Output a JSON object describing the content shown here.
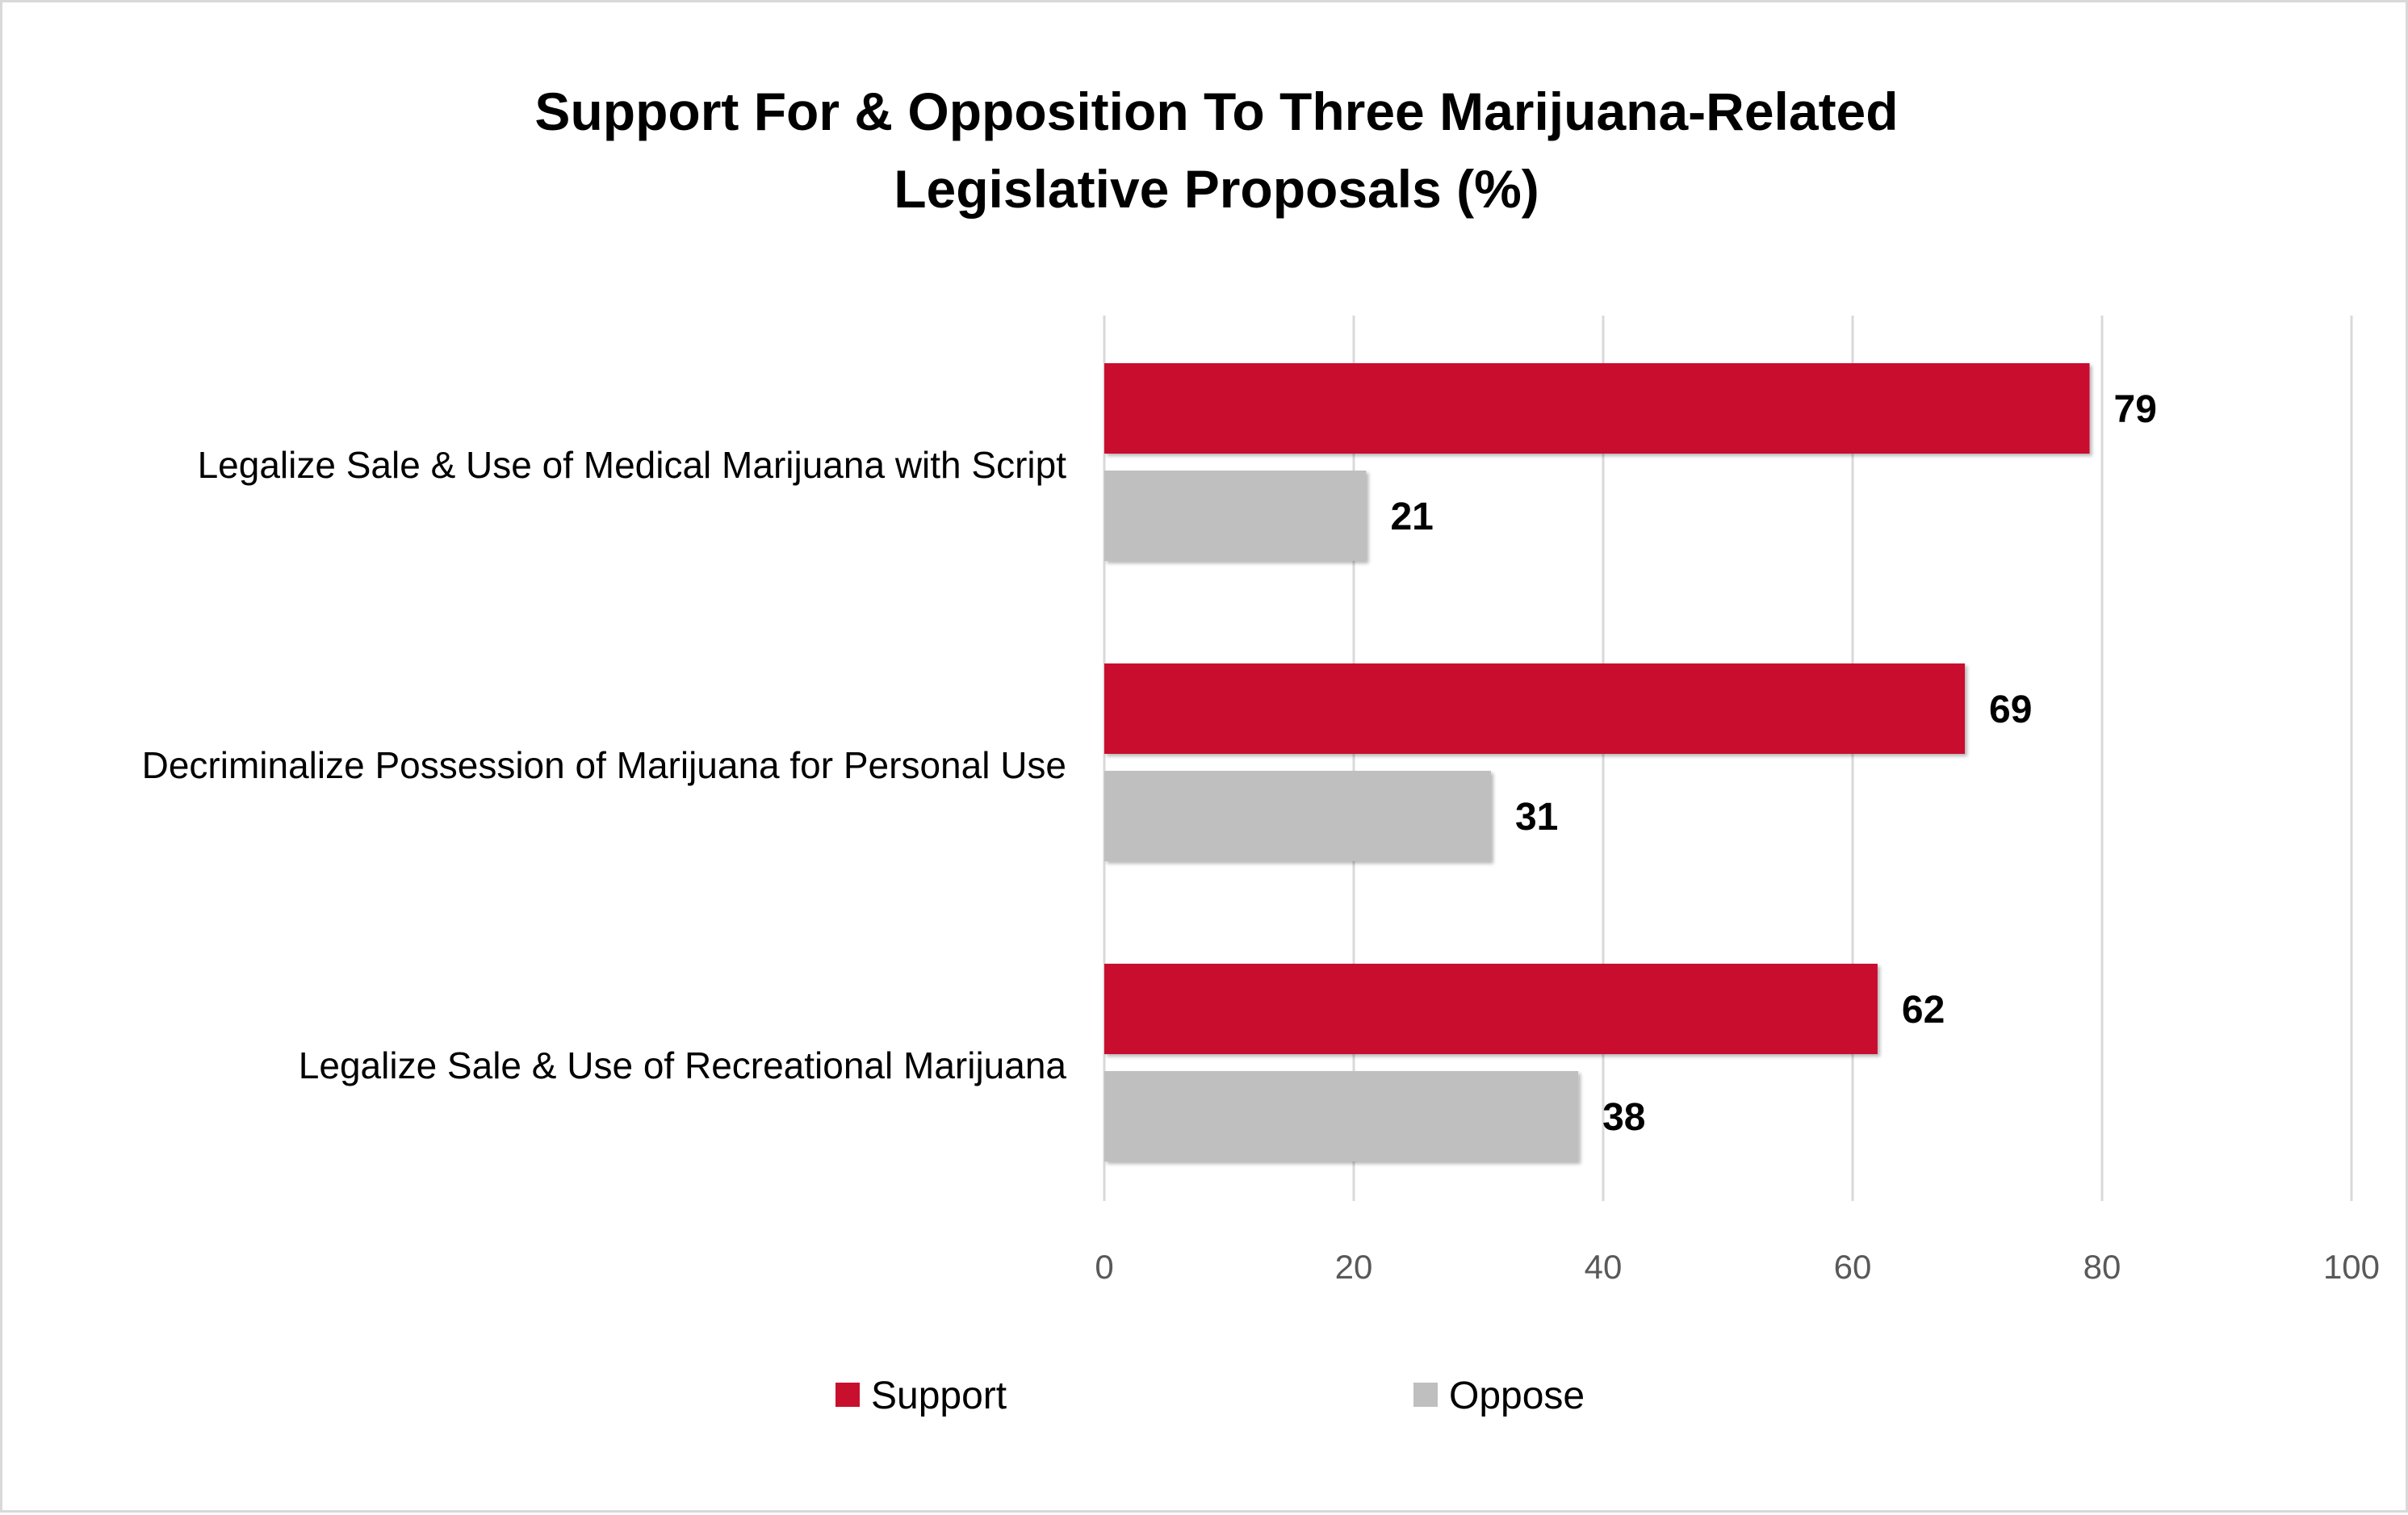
{
  "chart_data": {
    "type": "bar",
    "orientation": "horizontal",
    "title": "Support For & Opposition To Three Marijuana-Related Legislative Proposals (%)",
    "title_lines": [
      "Support For & Opposition To Three Marijuana-Related",
      "Legislative Proposals (%)"
    ],
    "categories": [
      "Legalize Sale & Use of Medical Marijuana with Script",
      "Decriminalize Possession of Marijuana for Personal Use",
      "Legalize Sale & Use of Recreational Marijuana"
    ],
    "series": [
      {
        "name": "Support",
        "color": "#c8102e",
        "values": [
          79,
          69,
          62
        ]
      },
      {
        "name": "Oppose",
        "color": "#bfbfbf",
        "values": [
          21,
          31,
          38
        ]
      }
    ],
    "xlim": [
      0,
      100
    ],
    "xticks": [
      0,
      20,
      40,
      60,
      80,
      100
    ],
    "grid": true,
    "legend_position": "bottom",
    "xlabel": "",
    "ylabel": ""
  }
}
